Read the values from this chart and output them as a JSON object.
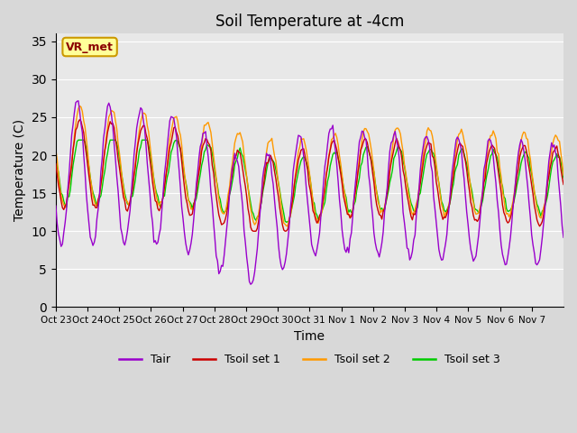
{
  "title": "Soil Temperature at -4cm",
  "xlabel": "Time",
  "ylabel": "Temperature (C)",
  "ylim": [
    0,
    36
  ],
  "yticks": [
    0,
    5,
    10,
    15,
    20,
    25,
    30,
    35
  ],
  "plot_bg_color": "#e8e8e8",
  "fig_bg_color": "#d8d8d8",
  "colors": {
    "Tair": "#9900cc",
    "Tsoil1": "#cc0000",
    "Tsoil2": "#ff9900",
    "Tsoil3": "#00cc00"
  },
  "legend_labels": [
    "Tair",
    "Tsoil set 1",
    "Tsoil set 2",
    "Tsoil set 3"
  ],
  "xtick_labels": [
    "Oct 23",
    "Oct 24",
    "Oct 25",
    "Oct 26",
    "Oct 27",
    "Oct 28",
    "Oct 29",
    "Oct 30",
    "Oct 31",
    "Nov 1",
    "Nov 2",
    "Nov 3",
    "Nov 4",
    "Nov 5",
    "Nov 6",
    "Nov 7"
  ],
  "annotation_text": "VR_met",
  "annotation_bg": "#ffff99",
  "annotation_border": "#cc9900"
}
